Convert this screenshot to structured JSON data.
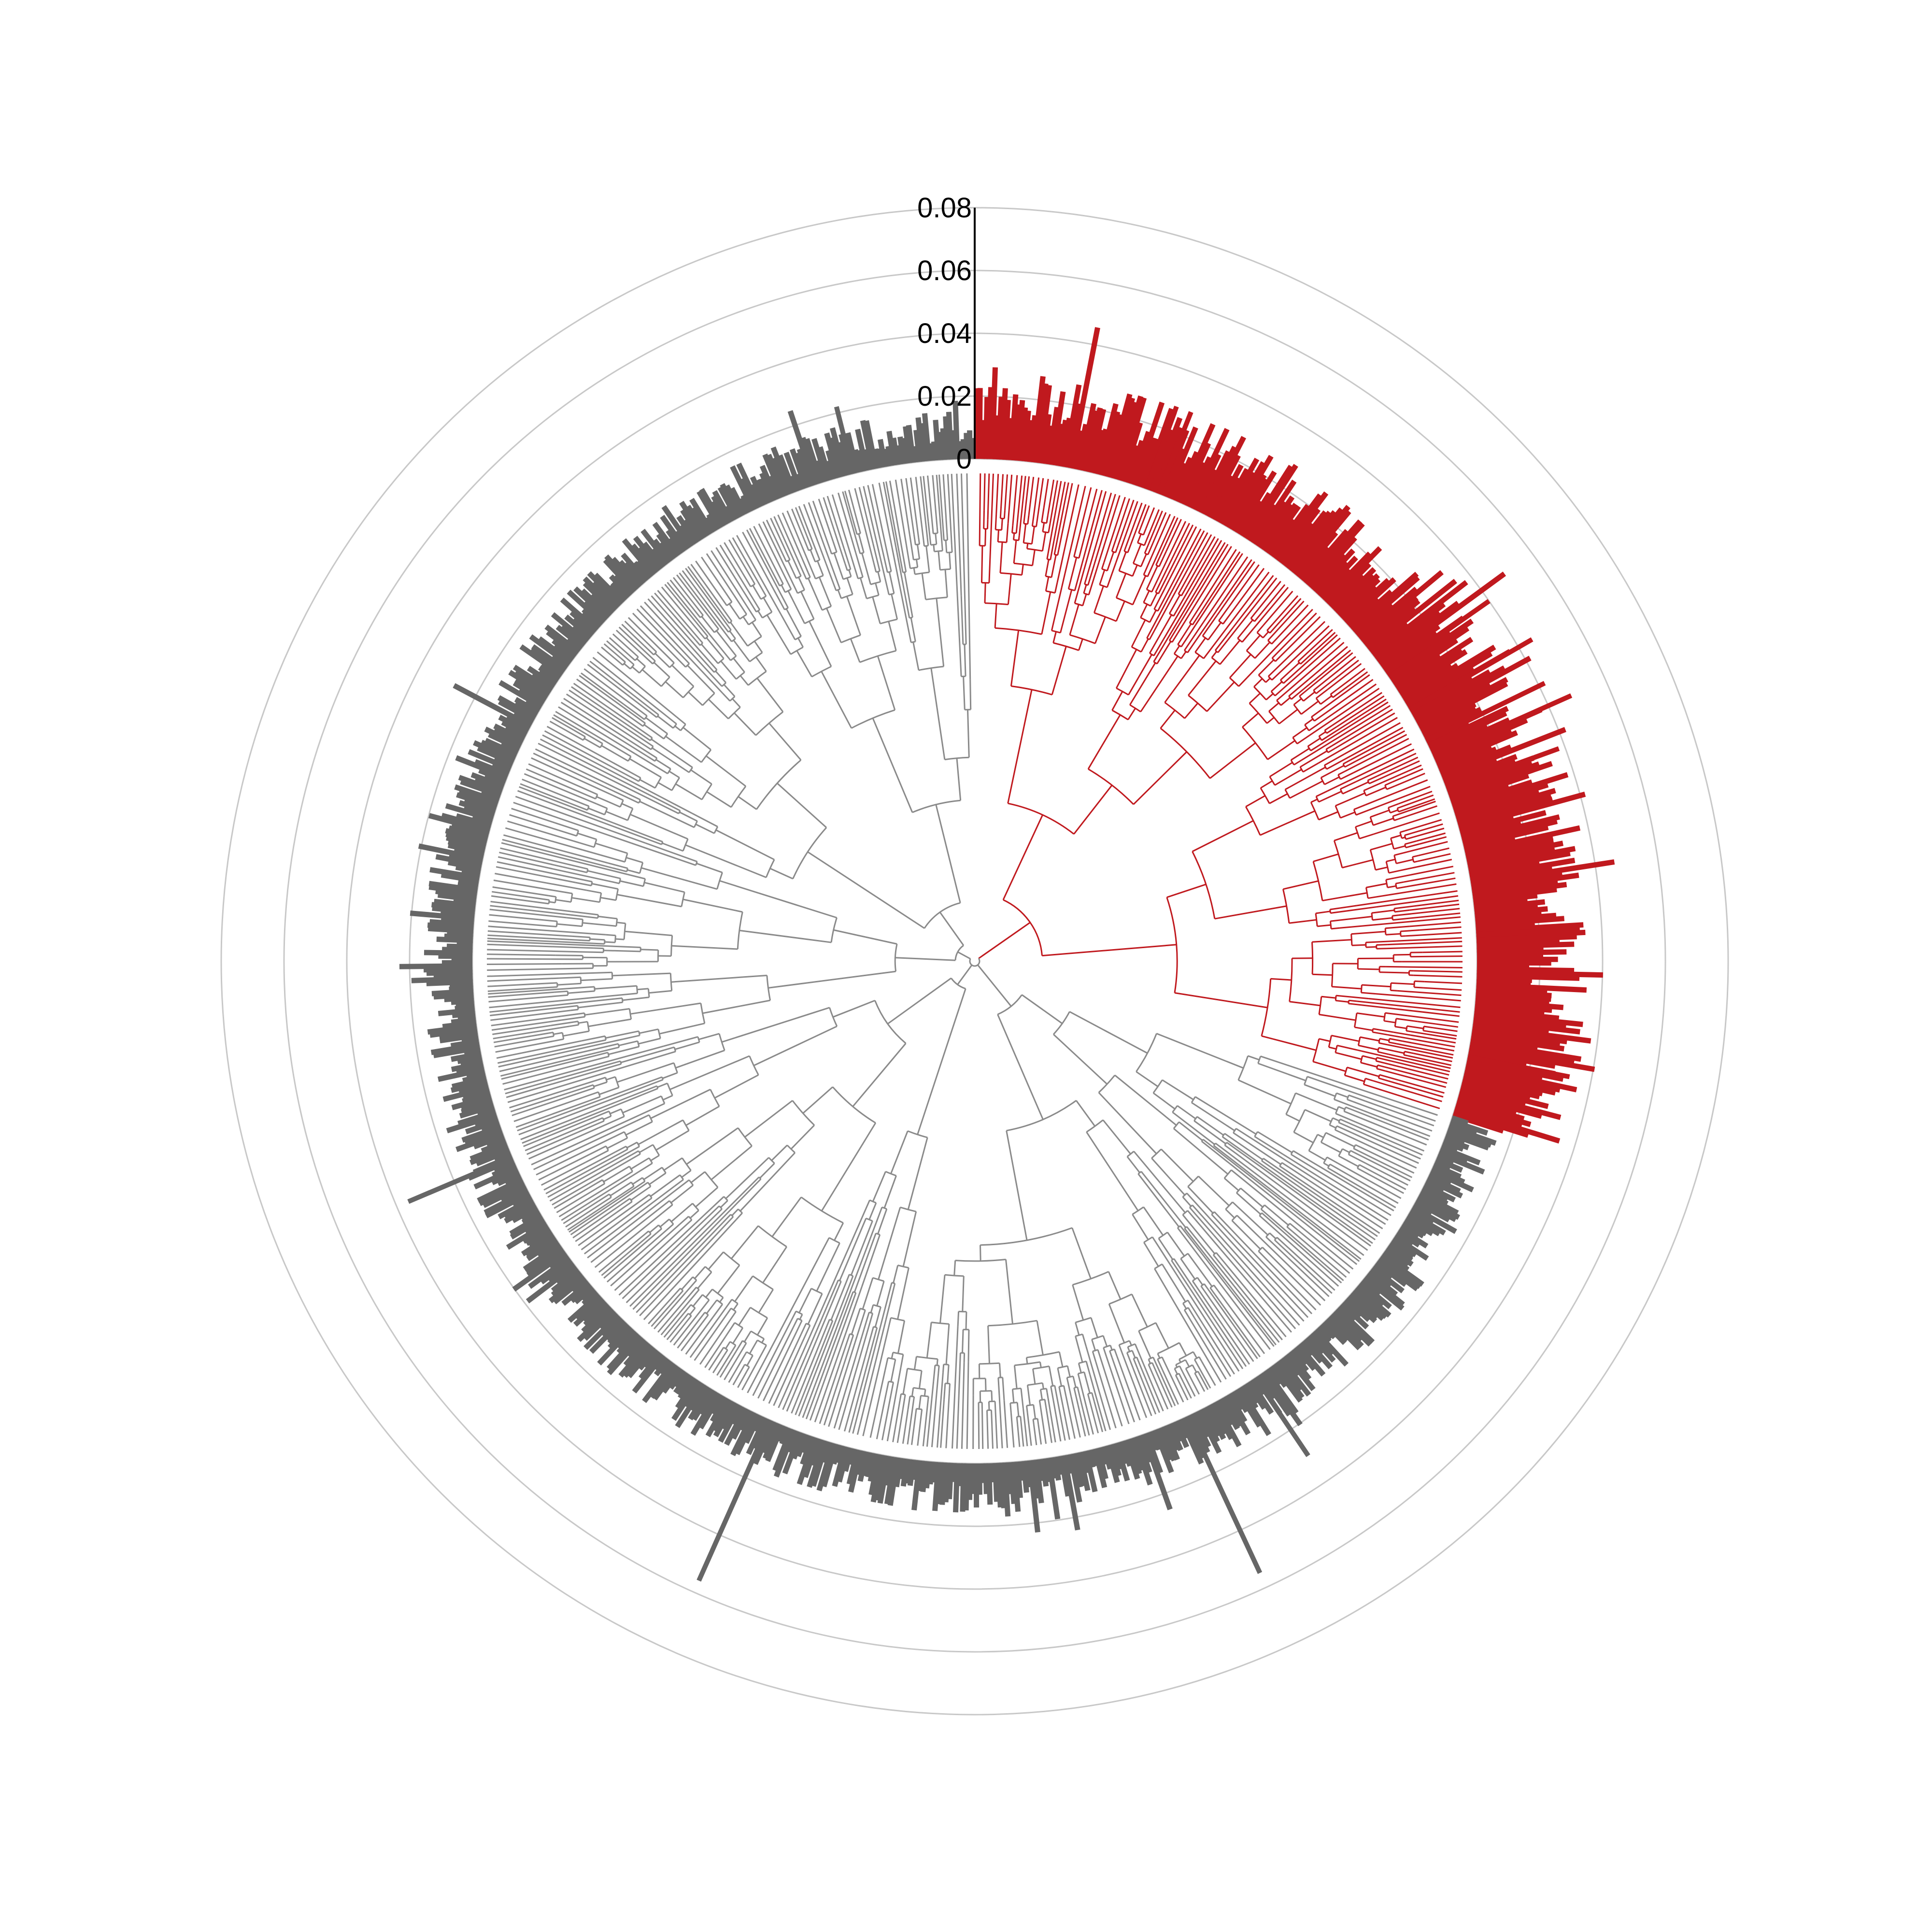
{
  "chart_data": {
    "type": "bar",
    "subtype": "circular phylogenetic tree with radial bar ring",
    "title": "",
    "xlabel": "",
    "ylabel": "",
    "ylim": [
      0,
      0.08
    ],
    "radial_ticks": [
      0,
      0.02,
      0.04,
      0.06,
      0.08
    ],
    "radial_tick_labels": [
      "0",
      "0.02",
      "0.04",
      "0.06",
      "0.08"
    ],
    "grid": true,
    "legend": "none",
    "leaf_count": 1000,
    "highlighted_clade": {
      "color": "#c0191e",
      "angle_start_deg": 0,
      "angle_end_deg": 108,
      "typical_value": 0.02,
      "max_value": 0.059
    },
    "other_clades": {
      "tree_color": "#8a8a8a",
      "bar_color": "#666666",
      "typical_value": 0.01,
      "max_value": 0.056
    },
    "prominent_bars": [
      {
        "angle_deg": 20,
        "value": 0.028,
        "group": "highlighted"
      },
      {
        "angle_deg": 21.5,
        "value": 0.028,
        "group": "highlighted"
      },
      {
        "angle_deg": 55,
        "value": 0.04,
        "group": "highlighted"
      },
      {
        "angle_deg": 60,
        "value": 0.045,
        "group": "highlighted"
      },
      {
        "angle_deg": 64,
        "value": 0.042,
        "group": "highlighted"
      },
      {
        "angle_deg": 66,
        "value": 0.048,
        "group": "highlighted"
      },
      {
        "angle_deg": 70,
        "value": 0.038,
        "group": "highlighted"
      },
      {
        "angle_deg": 87,
        "value": 0.033,
        "group": "highlighted"
      },
      {
        "angle_deg": 101,
        "value": 0.033,
        "group": "highlighted"
      },
      {
        "angle_deg": 146,
        "value": 0.03,
        "group": "other"
      },
      {
        "angle_deg": 155,
        "value": 0.055,
        "group": "other"
      },
      {
        "angle_deg": 204,
        "value": 0.056,
        "group": "other"
      },
      {
        "angle_deg": 247,
        "value": 0.036,
        "group": "other"
      },
      {
        "angle_deg": 346,
        "value": 0.022,
        "group": "other"
      }
    ],
    "colors": {
      "highlight": "#c0191e",
      "tree_gray": "#8a8a8a",
      "bar_gray": "#666666",
      "grid": "#c8c8c8",
      "base_ring": "#ffffff",
      "axis": "#000000"
    }
  }
}
